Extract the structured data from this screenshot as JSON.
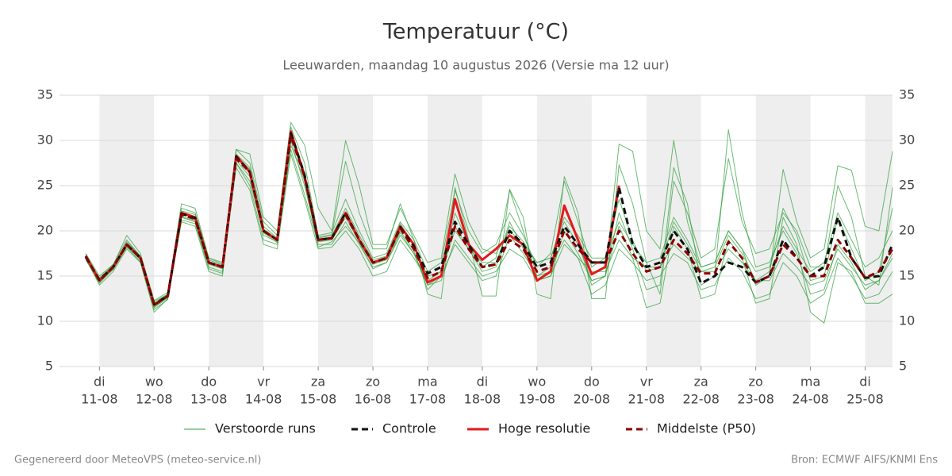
{
  "chart_data": {
    "type": "line",
    "title": "Temperatuur (°C)",
    "subtitle": "Leeuwarden, maandag 10 augustus 2026 (Versie ma 12 uur)",
    "footer_left": "Gegenereerd door MeteoVPS (meteo-service.nl)",
    "footer_right": "Bron: ECMWF AIFS/KNMI Ens",
    "x": [
      10.75,
      11,
      11.25,
      11.5,
      11.75,
      12,
      12.25,
      12.5,
      12.75,
      13,
      13.25,
      13.5,
      13.75,
      14,
      14.25,
      14.5,
      14.75,
      15,
      15.25,
      15.5,
      15.75,
      16,
      16.25,
      16.5,
      16.75,
      17,
      17.25,
      17.5,
      17.75,
      18,
      18.25,
      18.5,
      18.75,
      19,
      19.25,
      19.5,
      19.75,
      20,
      20.25,
      20.5,
      20.75,
      21,
      21.25,
      21.5,
      21.75,
      22,
      22.25,
      22.5,
      22.75,
      23,
      23.25,
      23.5,
      23.75,
      24,
      24.25,
      24.5,
      24.75,
      25,
      25.25,
      25.5
    ],
    "xlim": [
      10.27,
      25.5
    ],
    "xticks": [
      {
        "value": 11,
        "label": "di",
        "date": "11-08"
      },
      {
        "value": 12,
        "label": "wo",
        "date": "12-08"
      },
      {
        "value": 13,
        "label": "do",
        "date": "13-08"
      },
      {
        "value": 14,
        "label": "vr",
        "date": "14-08"
      },
      {
        "value": 15,
        "label": "za",
        "date": "15-08"
      },
      {
        "value": 16,
        "label": "zo",
        "date": "16-08"
      },
      {
        "value": 17,
        "label": "ma",
        "date": "17-08"
      },
      {
        "value": 18,
        "label": "di",
        "date": "18-08"
      },
      {
        "value": 19,
        "label": "wo",
        "date": "19-08"
      },
      {
        "value": 20,
        "label": "do",
        "date": "20-08"
      },
      {
        "value": 21,
        "label": "vr",
        "date": "21-08"
      },
      {
        "value": 22,
        "label": "za",
        "date": "22-08"
      },
      {
        "value": 23,
        "label": "zo",
        "date": "23-08"
      },
      {
        "value": 24,
        "label": "ma",
        "date": "24-08"
      },
      {
        "value": 25,
        "label": "di",
        "date": "25-08"
      }
    ],
    "ylim": [
      5,
      35
    ],
    "yticks": [
      5,
      10,
      15,
      20,
      25,
      30,
      35
    ],
    "grid": true,
    "legend": "bottom",
    "ensemble": {
      "name": "Verstoorde runs",
      "color": "#2e9e3a",
      "members": [
        [
          17.5,
          15.0,
          16.3,
          19.0,
          17.2,
          12.0,
          13.0,
          22.5,
          22.0,
          17.0,
          16.5,
          29.0,
          27.5,
          21.0,
          19.5,
          31.5,
          27.5,
          19.5,
          19.8,
          23.5,
          20.0,
          17.0,
          17.5,
          21.0,
          19.0,
          15.5,
          16.5,
          24.5,
          20.0,
          17.5,
          18.5,
          22.0,
          19.5,
          16.0,
          17.5,
          25.5,
          21.0,
          16.0,
          17.0,
          21.0,
          18.5,
          16.5,
          17.0,
          21.5,
          19.0,
          16.0,
          16.5,
          20.0,
          18.0,
          15.5,
          16.0,
          20.5,
          18.0,
          15.5,
          16.5,
          22.0,
          19.0,
          16.0,
          17.0,
          20.0
        ],
        [
          17.0,
          14.0,
          15.5,
          18.0,
          16.5,
          11.0,
          12.5,
          21.0,
          20.5,
          15.5,
          15.0,
          27.5,
          25.0,
          19.0,
          18.5,
          29.0,
          24.0,
          18.5,
          18.5,
          21.0,
          18.5,
          16.0,
          16.5,
          19.5,
          17.5,
          14.0,
          14.5,
          19.0,
          17.0,
          15.0,
          15.5,
          18.0,
          17.0,
          14.5,
          15.0,
          18.5,
          17.0,
          13.0,
          14.0,
          18.0,
          16.5,
          14.5,
          15.0,
          17.5,
          16.5,
          13.5,
          14.0,
          17.0,
          15.5,
          12.5,
          13.0,
          16.5,
          15.0,
          12.0,
          13.0,
          17.0,
          15.0,
          12.5,
          13.0,
          15.5
        ],
        [
          17.3,
          14.8,
          16.2,
          19.5,
          17.5,
          12.3,
          13.2,
          23.0,
          22.5,
          17.0,
          16.3,
          29.0,
          28.5,
          21.5,
          20.0,
          32.0,
          29.5,
          22.5,
          20.0,
          30.0,
          25.0,
          18.5,
          18.5,
          22.5,
          19.5,
          16.5,
          17.0,
          26.3,
          21.0,
          18.0,
          17.5,
          20.0,
          18.5,
          16.5,
          17.0,
          21.0,
          18.5,
          14.5,
          15.0,
          29.6,
          28.8,
          20.0,
          18.0,
          30.0,
          21.0,
          16.0,
          16.5,
          20.0,
          18.0,
          14.0,
          15.0,
          26.8,
          21.0,
          17.0,
          18.0,
          27.2,
          26.7,
          20.5,
          20.0,
          28.8
        ],
        [
          16.8,
          14.2,
          15.8,
          18.3,
          16.8,
          11.5,
          12.6,
          21.5,
          21.0,
          16.0,
          15.5,
          27.8,
          26.0,
          19.5,
          18.8,
          30.0,
          25.0,
          18.8,
          19.0,
          21.5,
          18.8,
          16.3,
          16.8,
          20.0,
          17.8,
          13.5,
          15.0,
          22.0,
          18.5,
          16.0,
          17.0,
          24.5,
          20.0,
          15.0,
          15.5,
          22.5,
          19.0,
          14.0,
          15.0,
          22.0,
          18.0,
          13.5,
          14.0,
          27.0,
          23.0,
          14.0,
          15.0,
          31.2,
          22.0,
          16.0,
          16.5,
          20.0,
          17.5,
          13.0,
          13.5,
          18.5,
          16.5,
          13.5,
          14.5,
          17.0
        ],
        [
          17.4,
          14.6,
          16.1,
          18.6,
          17.1,
          12.2,
          13.0,
          22.2,
          21.8,
          16.8,
          16.2,
          28.5,
          27.0,
          20.5,
          19.2,
          31.0,
          26.5,
          19.2,
          19.5,
          22.5,
          19.5,
          16.8,
          17.2,
          20.8,
          18.5,
          15.0,
          15.5,
          20.0,
          18.0,
          16.5,
          16.5,
          20.5,
          18.8,
          16.5,
          17.0,
          21.5,
          19.5,
          17.0,
          17.0,
          23.5,
          19.0,
          15.5,
          16.0,
          21.0,
          18.5,
          15.5,
          16.0,
          19.5,
          17.5,
          14.5,
          15.5,
          22.5,
          19.5,
          14.5,
          15.0,
          21.5,
          18.0,
          14.5,
          15.5,
          22.5
        ],
        [
          17.1,
          14.3,
          15.9,
          18.4,
          16.9,
          11.6,
          12.7,
          21.6,
          21.1,
          16.3,
          15.8,
          27.5,
          25.5,
          19.8,
          18.7,
          29.5,
          25.5,
          18.2,
          18.8,
          20.5,
          18.7,
          15.8,
          16.5,
          19.8,
          17.5,
          14.0,
          15.0,
          18.5,
          16.5,
          14.5,
          15.0,
          19.5,
          17.5,
          15.0,
          16.0,
          19.0,
          17.0,
          15.5,
          15.5,
          19.0,
          17.0,
          16.0,
          16.0,
          18.5,
          17.0,
          15.5,
          15.5,
          18.0,
          16.5,
          14.5,
          14.5,
          17.5,
          16.0,
          14.0,
          14.5,
          18.0,
          16.0,
          14.0,
          14.5,
          17.5
        ],
        [
          17.3,
          14.7,
          16.0,
          18.8,
          17.2,
          12.0,
          12.9,
          22.0,
          21.6,
          16.6,
          16.1,
          28.3,
          26.8,
          20.2,
          19.1,
          30.8,
          26.2,
          19.3,
          19.6,
          27.7,
          22.0,
          18.0,
          18.0,
          23.0,
          19.0,
          13.0,
          12.5,
          24.8,
          19.0,
          12.8,
          12.8,
          24.6,
          21.5,
          13.0,
          12.5,
          26.0,
          22.0,
          12.5,
          12.5,
          27.3,
          23.0,
          16.5,
          13.0,
          25.5,
          22.0,
          17.0,
          18.0,
          28.0,
          21.0,
          17.5,
          18.0,
          22.0,
          20.0,
          16.0,
          16.0,
          25.0,
          21.5,
          15.0,
          14.0,
          24.8
        ],
        [
          17.0,
          14.4,
          15.7,
          18.2,
          16.6,
          11.3,
          12.4,
          21.2,
          20.8,
          15.8,
          15.3,
          27.0,
          24.5,
          18.5,
          18.0,
          28.5,
          23.5,
          18.0,
          18.2,
          20.0,
          18.0,
          15.0,
          15.5,
          19.0,
          17.0,
          14.5,
          15.5,
          20.5,
          18.0,
          15.5,
          16.0,
          21.0,
          18.0,
          14.5,
          15.0,
          20.0,
          17.5,
          14.5,
          15.0,
          20.5,
          17.0,
          11.5,
          12.0,
          20.5,
          18.0,
          12.5,
          13.0,
          19.0,
          17.0,
          12.0,
          12.5,
          21.5,
          18.5,
          11.0,
          9.8,
          16.5,
          15.5,
          12.0,
          12.0,
          13.0
        ]
      ]
    },
    "series": [
      {
        "name": "Controle",
        "color": "#111111",
        "dash": true,
        "values": [
          17.1,
          14.6,
          16.0,
          18.5,
          17.0,
          11.9,
          12.8,
          21.9,
          21.4,
          16.5,
          16.0,
          28.2,
          26.5,
          20.0,
          19.0,
          30.8,
          26.2,
          19.0,
          19.2,
          22.0,
          19.0,
          16.5,
          17.0,
          20.4,
          18.3,
          15.3,
          16.0,
          21.0,
          18.5,
          16.0,
          16.3,
          20.0,
          18.5,
          16.0,
          16.5,
          20.5,
          18.5,
          16.5,
          16.5,
          24.8,
          18.5,
          16.0,
          16.5,
          20.0,
          18.0,
          14.2,
          15.0,
          16.5,
          16.0,
          14.3,
          15.0,
          19.0,
          17.0,
          15.0,
          16.0,
          21.5,
          17.0,
          14.8,
          15.0,
          18.5
        ]
      },
      {
        "name": "Hoge resolutie",
        "color": "#e31a1c",
        "dash": false,
        "values": [
          17.2,
          14.5,
          16.0,
          18.5,
          17.0,
          11.8,
          12.8,
          22.0,
          21.5,
          16.5,
          16.0,
          28.3,
          26.5,
          20.0,
          19.0,
          31.0,
          26.0,
          19.0,
          19.2,
          22.0,
          19.0,
          16.5,
          17.0,
          20.5,
          18.5,
          14.3,
          15.0,
          23.5,
          18.5,
          16.8,
          18.0,
          19.5,
          18.5,
          14.5,
          15.5,
          22.8,
          19.0,
          15.2,
          16.0,
          25.0,
          null,
          null,
          null,
          null,
          null,
          null,
          null,
          null,
          null,
          null,
          null,
          null,
          null,
          null,
          null,
          null,
          null,
          null,
          null,
          null
        ]
      },
      {
        "name": "Middelste (P50)",
        "color": "#8b0000",
        "dash": true,
        "values": [
          17.2,
          14.5,
          16.0,
          18.5,
          17.0,
          11.8,
          12.8,
          21.8,
          21.3,
          16.5,
          16.0,
          28.0,
          26.5,
          20.0,
          19.0,
          30.5,
          26.0,
          19.0,
          19.2,
          21.8,
          19.0,
          16.5,
          17.0,
          20.3,
          18.0,
          14.8,
          15.5,
          20.5,
          18.0,
          16.0,
          16.3,
          19.0,
          18.0,
          15.5,
          16.0,
          20.0,
          18.0,
          16.5,
          16.5,
          20.0,
          17.5,
          15.5,
          16.0,
          19.0,
          17.5,
          15.3,
          15.3,
          18.8,
          17.0,
          14.3,
          15.0,
          18.5,
          17.0,
          15.0,
          15.0,
          19.0,
          17.0,
          14.8,
          15.5,
          18.0
        ]
      }
    ]
  }
}
